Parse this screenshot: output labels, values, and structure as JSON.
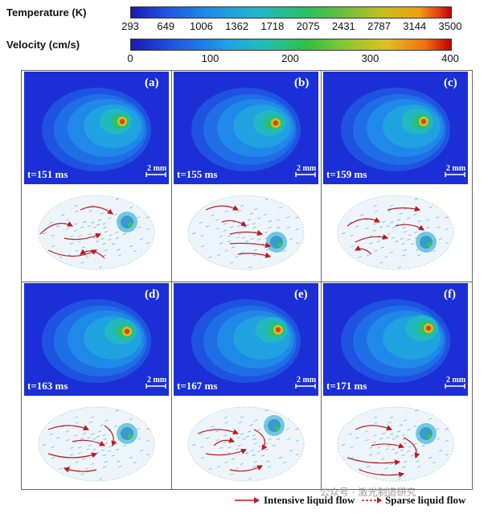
{
  "colorbars": {
    "temperature": {
      "title": "Temperature (K)",
      "ticks": [
        "293",
        "649",
        "1006",
        "1362",
        "1718",
        "2075",
        "2431",
        "2787",
        "3144",
        "3500"
      ]
    },
    "velocity": {
      "title": "Velocity (cm/s)",
      "ticks": [
        "0",
        "100",
        "200",
        "300",
        "400"
      ]
    }
  },
  "panels": [
    {
      "label": "(a)",
      "time": "t=151 ms",
      "scale": "2 mm"
    },
    {
      "label": "(b)",
      "time": "t=155 ms",
      "scale": "2 mm"
    },
    {
      "label": "(c)",
      "time": "t=159 ms",
      "scale": "2 mm"
    },
    {
      "label": "(d)",
      "time": "t=163 ms",
      "scale": "2 mm"
    },
    {
      "label": "(e)",
      "time": "t=167 ms",
      "scale": "2 mm"
    },
    {
      "label": "(f)",
      "time": "t=171 ms",
      "scale": "2 mm"
    }
  ],
  "legend": {
    "intensive": "Intensive liquid flow",
    "sparse": "Sparse liquid flow",
    "watermark": "公众号 · 激光制造研究"
  },
  "colors": {
    "panel_background": "#1c2fd6",
    "flow_arrow": "#c0181e",
    "vector_field": "#3aa6d8"
  }
}
